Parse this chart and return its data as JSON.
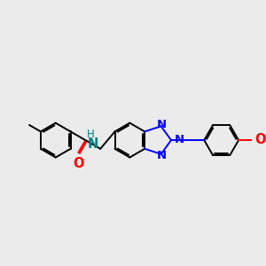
{
  "bg_color": "#ebebeb",
  "bond_color": "#000000",
  "nitrogen_color": "#0000ff",
  "oxygen_color": "#ff0000",
  "nh_color": "#008080",
  "line_width": 1.4,
  "font_size": 9.5,
  "figsize": [
    3.0,
    3.0
  ],
  "dpi": 100,
  "xlim": [
    -1.0,
    9.5
  ],
  "ylim": [
    -1.5,
    4.5
  ]
}
